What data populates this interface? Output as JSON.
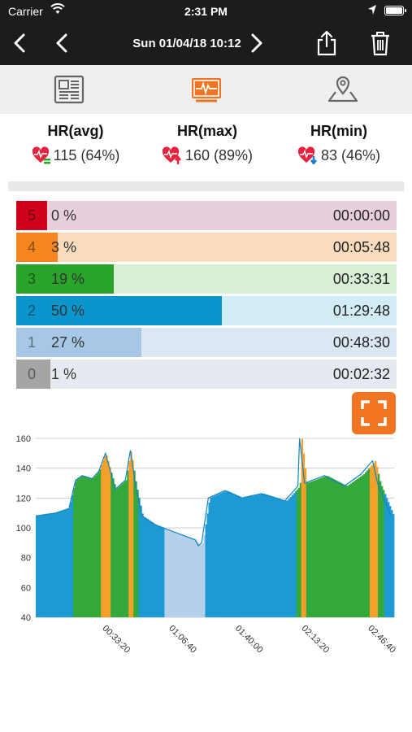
{
  "status_bar": {
    "carrier": "Carrier",
    "time": "2:31 PM"
  },
  "nav": {
    "title": "Sun 01/04/18 10:12"
  },
  "summary": [
    {
      "label": "HR(avg)",
      "value": "115 (64%)",
      "icon": "heart-avg-icon"
    },
    {
      "label": "HR(max)",
      "value": "160 (89%)",
      "icon": "heart-max-icon"
    },
    {
      "label": "HR(min)",
      "value": "83 (46%)",
      "icon": "heart-min-icon"
    }
  ],
  "zones": [
    {
      "zone": "5",
      "percent_label": "0 %",
      "fraction": 0.0,
      "duration": "00:00:00",
      "color": "#d0021b",
      "bg": "#e8cfdc"
    },
    {
      "zone": "4",
      "percent_label": "3 %",
      "fraction": 0.03,
      "duration": "00:05:48",
      "color": "#f5861f",
      "bg": "#f8dcbb"
    },
    {
      "zone": "3",
      "percent_label": "19 %",
      "fraction": 0.19,
      "duration": "00:33:31",
      "color": "#2aa52a",
      "bg": "#d8eed6"
    },
    {
      "zone": "2",
      "percent_label": "50 %",
      "fraction": 0.5,
      "duration": "01:29:48",
      "color": "#0a96cc",
      "bg": "#d2ecf6"
    },
    {
      "zone": "1",
      "percent_label": "27 %",
      "fraction": 0.27,
      "duration": "00:48:30",
      "color": "#a6c8e6",
      "bg": "#dbe8f4"
    },
    {
      "zone": "0",
      "percent_label": "1 %",
      "fraction": 0.01,
      "duration": "00:02:32",
      "color": "#a5a5a5",
      "bg": "#e4eaf0"
    }
  ],
  "chart_data": {
    "type": "area",
    "title": "",
    "xlabel": "",
    "ylabel": "",
    "ylim": [
      40,
      160
    ],
    "y_ticks": [
      40,
      60,
      80,
      100,
      120,
      140,
      160
    ],
    "x_ticks": [
      "00:33:20",
      "01:06:40",
      "01:40:00",
      "02:13:20",
      "02:46:40"
    ],
    "x_tick_seconds": [
      2000,
      4000,
      6000,
      8000,
      10000
    ],
    "duration_seconds": 10800,
    "grid": true,
    "zone_colors": [
      "#b5d0ea",
      "#1d9ad4",
      "#34a83a",
      "#f5a02b"
    ],
    "series": [
      {
        "x": [
          0,
          600,
          1000,
          1200,
          1400,
          1700,
          1900,
          2100,
          2400,
          2700,
          2850,
          3000,
          3200,
          3600,
          4200,
          4800,
          4900,
          5000,
          5200,
          5700,
          6200,
          6800,
          7500,
          7900,
          7950,
          8100,
          8700,
          9300,
          9800,
          10150,
          10300,
          10700
        ],
        "values": [
          108,
          110,
          113,
          132,
          135,
          133,
          138,
          150,
          126,
          132,
          152,
          130,
          108,
          102,
          97,
          92,
          88,
          90,
          120,
          125,
          120,
          123,
          118,
          128,
          160,
          130,
          135,
          128,
          136,
          145,
          130,
          108
        ]
      }
    ]
  }
}
